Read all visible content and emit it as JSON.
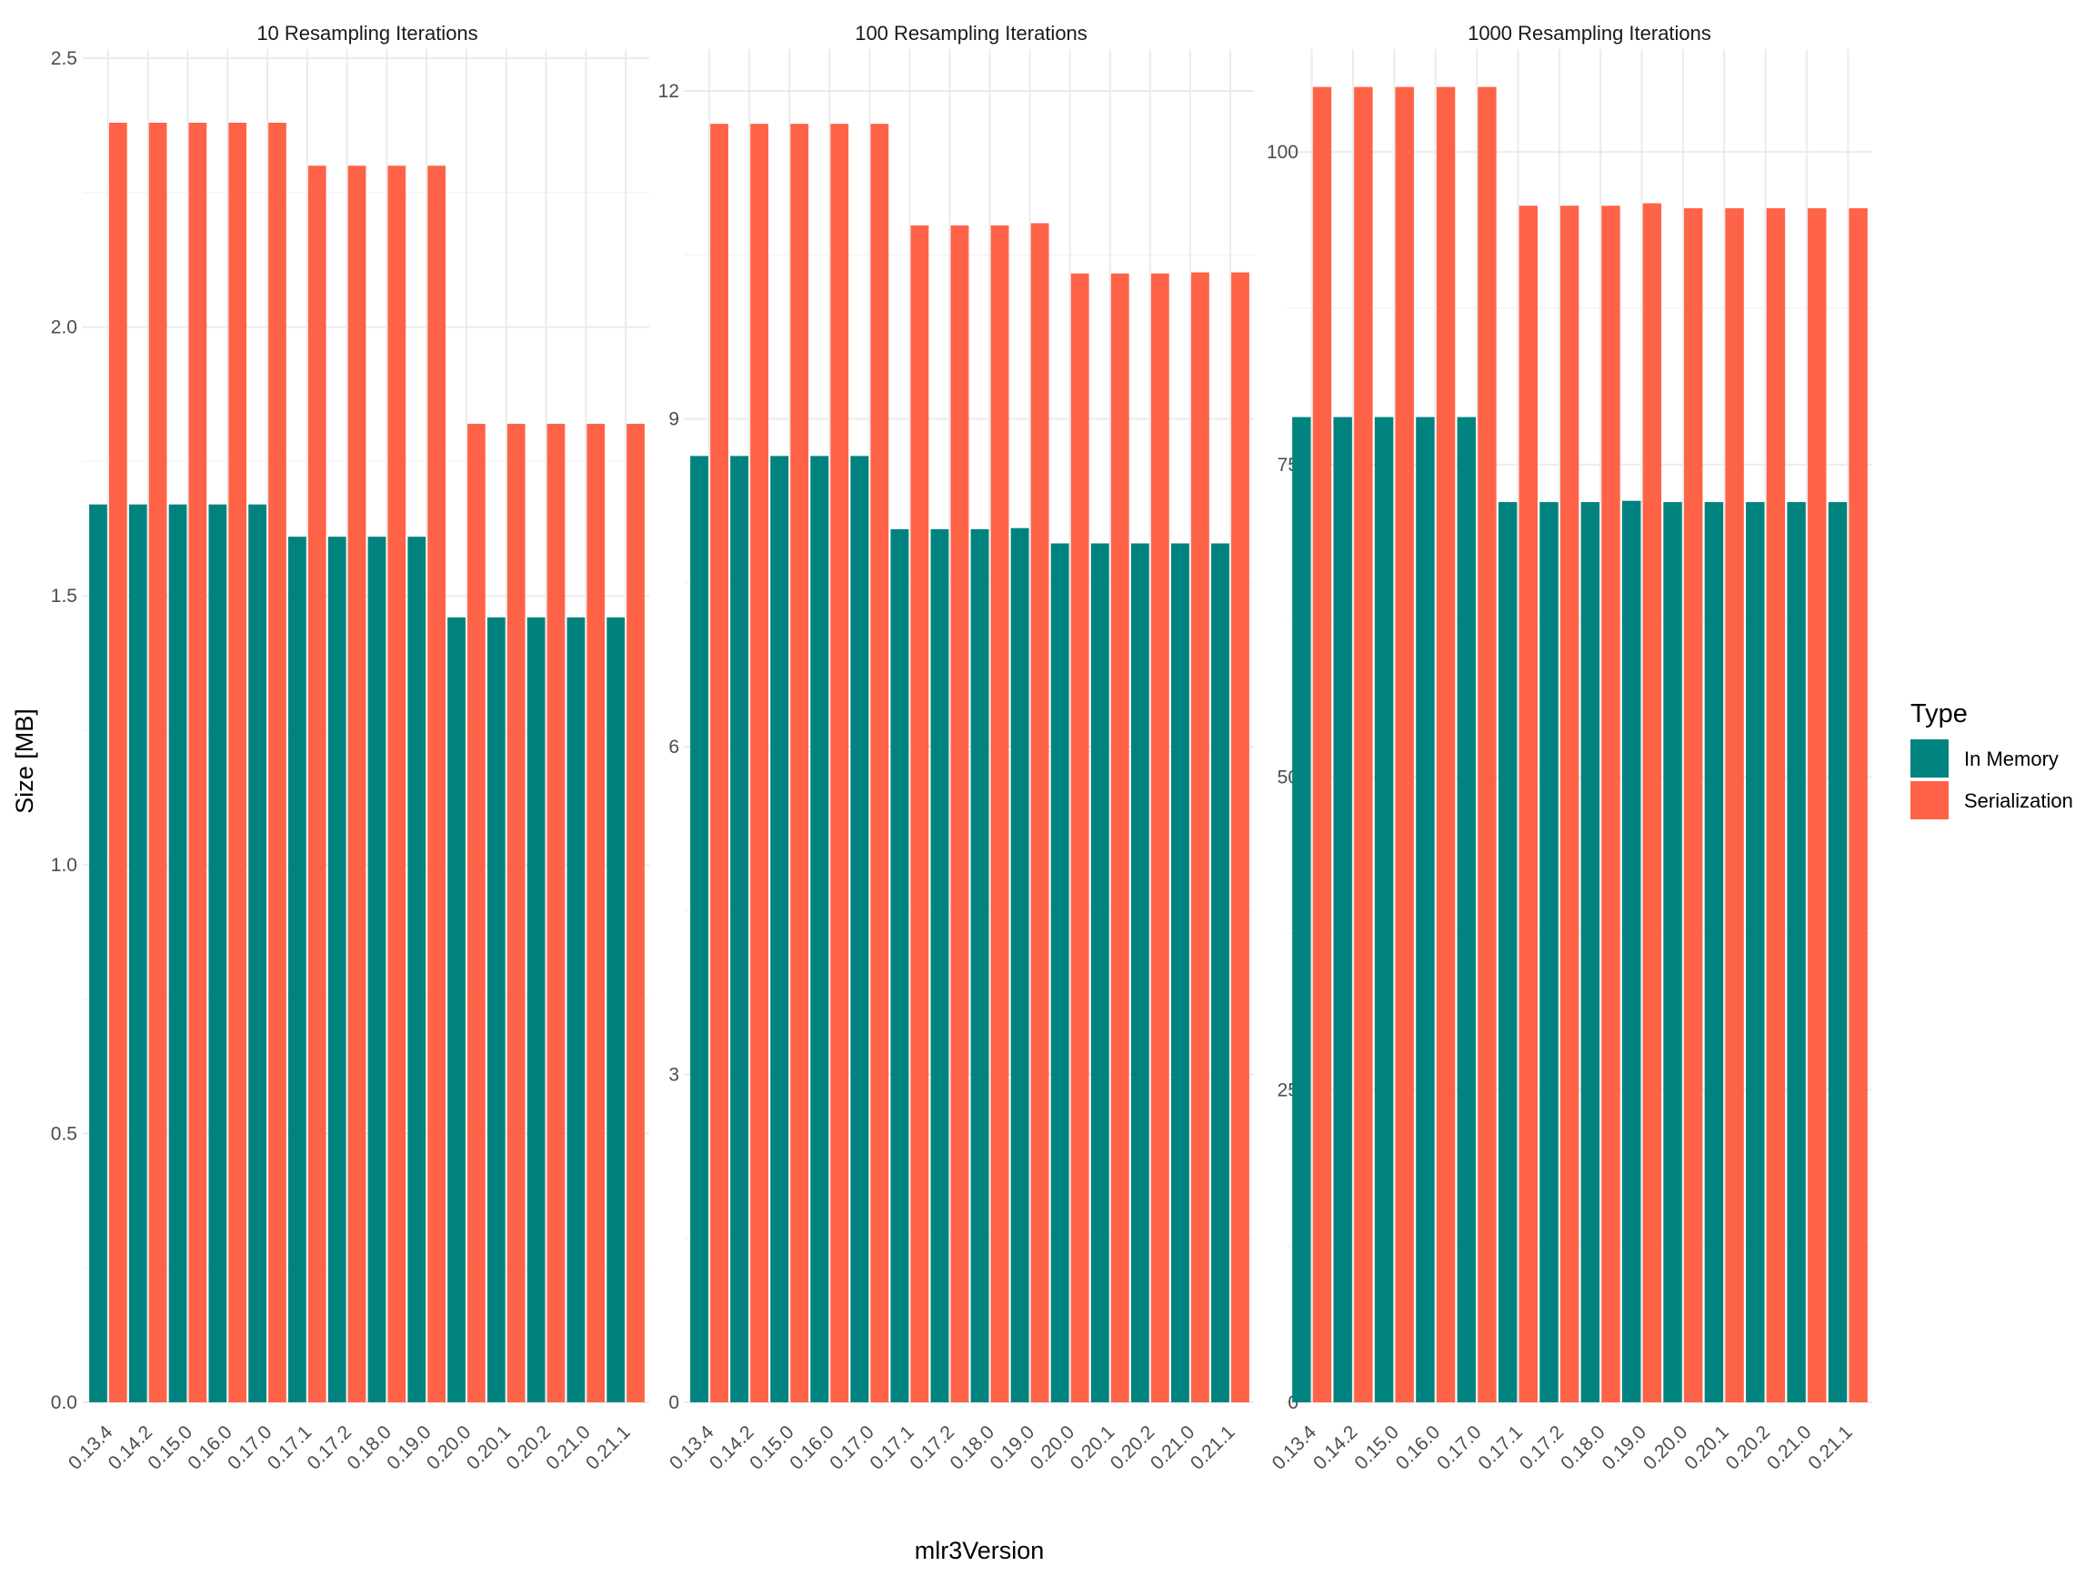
{
  "chart_data": {
    "type": "bar",
    "layout": "faceted grouped bars",
    "xlabel": "mlr3Version",
    "ylabel": "Size [MB]",
    "categories": [
      "0.13.4",
      "0.14.2",
      "0.15.0",
      "0.16.0",
      "0.17.0",
      "0.17.1",
      "0.17.2",
      "0.18.0",
      "0.19.0",
      "0.20.0",
      "0.20.1",
      "0.20.2",
      "0.21.0",
      "0.21.1"
    ],
    "legend": {
      "title": "Type",
      "position": "right",
      "entries": [
        {
          "name": "In Memory",
          "color": "#00837F"
        },
        {
          "name": "Serialization",
          "color": "#FF6347"
        }
      ]
    },
    "grid": true,
    "facets": [
      {
        "title": "10 Resampling Iterations",
        "ylim": [
          0,
          2.5
        ],
        "yticks": [
          "0.0",
          "0.5",
          "1.0",
          "1.5",
          "2.0",
          "2.5"
        ],
        "ytick_values": [
          0,
          0.5,
          1.0,
          1.5,
          2.0,
          2.5
        ],
        "series": [
          {
            "name": "In Memory",
            "values": [
              1.67,
              1.67,
              1.67,
              1.67,
              1.67,
              1.61,
              1.61,
              1.61,
              1.61,
              1.46,
              1.46,
              1.46,
              1.46,
              1.46
            ]
          },
          {
            "name": "Serialization",
            "values": [
              2.38,
              2.38,
              2.38,
              2.38,
              2.38,
              2.3,
              2.3,
              2.3,
              2.3,
              1.82,
              1.82,
              1.82,
              1.82,
              1.82
            ]
          }
        ]
      },
      {
        "title": "100 Resampling Iterations",
        "ylim": [
          0,
          12.3
        ],
        "yticks": [
          "0",
          "3",
          "6",
          "9",
          "12"
        ],
        "ytick_values": [
          0,
          3,
          6,
          9,
          12
        ],
        "series": [
          {
            "name": "In Memory",
            "values": [
              8.66,
              8.66,
              8.66,
              8.66,
              8.66,
              7.99,
              7.99,
              7.99,
              8.0,
              7.86,
              7.86,
              7.86,
              7.86,
              7.86
            ]
          },
          {
            "name": "Serialization",
            "values": [
              11.7,
              11.7,
              11.7,
              11.7,
              11.7,
              10.77,
              10.77,
              10.77,
              10.79,
              10.33,
              10.33,
              10.33,
              10.34,
              10.34
            ]
          }
        ]
      },
      {
        "title": "1000 Resampling Iterations",
        "ylim": [
          0,
          107.5
        ],
        "yticks": [
          "0",
          "25",
          "50",
          "75",
          "100"
        ],
        "ytick_values": [
          0,
          25,
          50,
          75,
          100
        ],
        "series": [
          {
            "name": "In Memory",
            "values": [
              78.8,
              78.8,
              78.8,
              78.8,
              78.8,
              72.0,
              72.0,
              72.0,
              72.1,
              72.0,
              72.0,
              72.0,
              72.0,
              72.0
            ]
          },
          {
            "name": "Serialization",
            "values": [
              105.2,
              105.2,
              105.2,
              105.2,
              105.2,
              95.7,
              95.7,
              95.7,
              95.9,
              95.5,
              95.5,
              95.5,
              95.5,
              95.5
            ]
          }
        ]
      }
    ]
  }
}
